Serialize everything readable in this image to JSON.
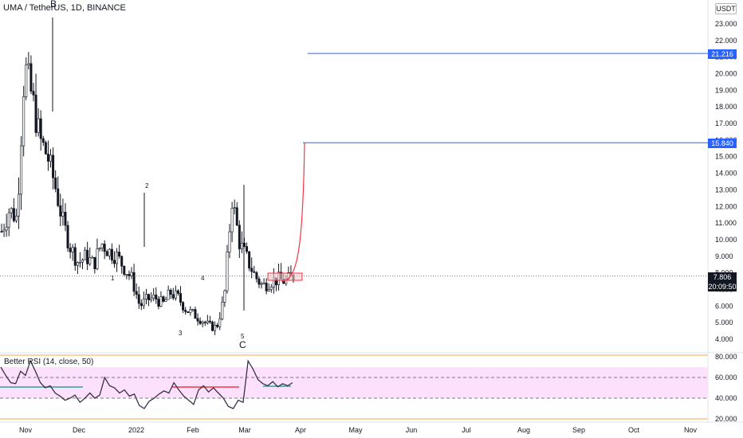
{
  "header": {
    "symbol_title": "UMA / TetherUS, 1D, BINANCE",
    "wave_label_b": "B"
  },
  "price_scale": {
    "currency_button": "USDT",
    "tick_labels": [
      "23.000",
      "22.000",
      "21.000",
      "20.000",
      "19.000",
      "18.000",
      "17.000",
      "16.000",
      "15.000",
      "14.000",
      "13.000",
      "12.000",
      "11.000",
      "10.000",
      "9.000",
      "8.000",
      "7.000",
      "6.000",
      "5.000",
      "4.000"
    ],
    "price_tag_top": "21.216",
    "price_tag_mid": "15.840",
    "last_price": "7.806",
    "countdown": "20:09:50"
  },
  "time_axis": {
    "tick_labels": [
      "Nov",
      "Dec",
      "2022",
      "Feb",
      "Mar",
      "Apr",
      "May",
      "Jun",
      "Jul",
      "Aug",
      "Sep",
      "Oct",
      "Nov"
    ]
  },
  "rsi_panel": {
    "title": "Better RSI (14, close, 50)",
    "tick_labels": [
      "80.000",
      "60.000",
      "40.000",
      "20.000"
    ]
  },
  "wave_labels": {
    "one": "1",
    "two": "2",
    "three": "3",
    "four": "4",
    "five": "5",
    "c": "C"
  },
  "colors": {
    "up_candle": "#ffffff",
    "down_candle": "#131722",
    "horizontal_line": "#2962ff",
    "projection_curve": "#f23645",
    "rsi_band_fill": "#fde0fb",
    "rsi_line": "#3a3148",
    "support_line_green": "#26a69a",
    "resistance_line_red": "#f23645",
    "last_price_line": "#787b86"
  },
  "chart_data": [
    {
      "type": "line",
      "title": "UMA / TetherUS, 1D, BINANCE",
      "x": [
        "Oct 27",
        "Nov 1",
        "Nov 8",
        "Nov 12",
        "Nov 18",
        "Nov 22",
        "Nov 27",
        "Dec 1",
        "Dec 5",
        "Dec 10",
        "Dec 15",
        "Dec 20",
        "Dec 25",
        "Dec 29",
        "Jan 1",
        "Jan 3",
        "Jan 8",
        "Jan 12",
        "Jan 17",
        "Jan 20",
        "Jan 23",
        "Jan 27",
        "Feb 1",
        "Feb 5",
        "Feb 9",
        "Feb 14",
        "Feb 18",
        "Feb 22",
        "Feb 24",
        "Feb 25",
        "Feb 28",
        "Mar 2",
        "Mar 5",
        "Mar 9",
        "Mar 13",
        "Mar 16",
        "Mar 20",
        "Mar 23",
        "Mar 27"
      ],
      "series": [
        {
          "values": [
            10.5,
            11.8,
            11.3,
            20.5,
            18.5,
            16.0,
            15.0,
            13.2,
            11.0,
            9.5,
            8.6,
            9.0,
            8.5,
            9.8,
            9.3,
            9.0,
            8.3,
            7.6,
            6.0,
            6.4,
            6.5,
            6.1,
            6.8,
            6.5,
            5.8,
            5.5,
            5.2,
            4.8,
            4.7,
            6.5,
            12.5,
            9.8,
            8.8,
            7.8,
            7.2,
            7.5,
            7.6,
            7.5,
            7.8
          ]
        }
      ],
      "ylim": [
        3.5,
        24
      ],
      "horizontal_levels": [
        21.216,
        15.84,
        7.806
      ],
      "projection": {
        "from": 7.5,
        "to": 15.84
      }
    },
    {
      "type": "line",
      "title": "Better RSI (14, close, 50)",
      "series": [
        {
          "values": [
            70,
            62,
            55,
            54,
            66,
            62,
            76,
            66,
            55,
            50,
            52,
            45,
            42,
            38,
            40,
            43,
            36,
            40,
            45,
            40,
            43,
            60,
            52,
            50,
            45,
            48,
            42,
            44,
            33,
            30,
            37,
            40,
            44,
            47,
            45,
            55,
            48,
            42,
            38,
            34,
            48,
            52,
            46,
            50,
            45,
            40,
            32,
            30,
            38,
            36,
            76,
            68,
            58,
            54,
            52,
            56,
            51,
            54,
            52,
            55
          ]
        }
      ],
      "ylim": [
        20,
        80
      ],
      "band": [
        40,
        70
      ],
      "levels": [
        60,
        40
      ]
    }
  ]
}
